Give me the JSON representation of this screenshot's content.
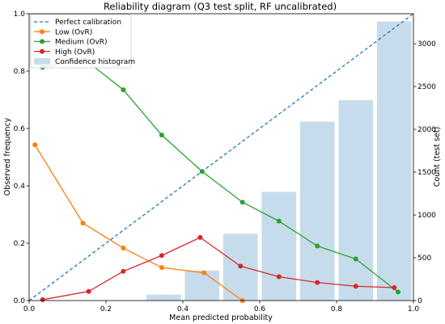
{
  "chart_data": {
    "type": "line",
    "title": "Reliability diagram (Q3 test split, RF uncalibrated)",
    "xlabel": "Mean predicted probability",
    "ylabel": "Observed frequency",
    "y2label": "Count (test set)",
    "xlim": [
      0,
      1
    ],
    "ylim": [
      0,
      1
    ],
    "y2lim": [
      0,
      3350
    ],
    "x_ticks": [
      0.0,
      0.2,
      0.4,
      0.6,
      0.8,
      1.0
    ],
    "x_tick_labels": [
      "0.0",
      "0.2",
      "0.4",
      "0.6",
      "0.8",
      "1.0"
    ],
    "y_ticks": [
      0.0,
      0.2,
      0.4,
      0.6,
      0.8,
      1.0
    ],
    "y_tick_labels": [
      "0.0",
      "0.2",
      "0.4",
      "0.6",
      "0.8",
      "1.0"
    ],
    "y2_ticks": [
      0,
      500,
      1000,
      1500,
      2000,
      2500,
      3000
    ],
    "y2_tick_labels": [
      "0",
      "500",
      "1000",
      "1500",
      "2000",
      "2500",
      "3000"
    ],
    "legend_position": "upper-left",
    "reference_line": {
      "name": "Perfect calibration",
      "color": "#1f77b4",
      "x": [
        0,
        1
      ],
      "y": [
        0,
        1
      ]
    },
    "series": [
      {
        "name": "Low (OvR)",
        "color": "#ff7f0e",
        "x": [
          0.015,
          0.14,
          0.245,
          0.345,
          0.455,
          0.555
        ],
        "y": [
          0.543,
          0.27,
          0.183,
          0.115,
          0.097,
          0.0
        ]
      },
      {
        "name": "Medium (OvR)",
        "color": "#2ca02c",
        "x": [
          0.035,
          0.145,
          0.245,
          0.345,
          0.45,
          0.555,
          0.65,
          0.75,
          0.85,
          0.96
        ],
        "y": [
          0.813,
          0.84,
          0.735,
          0.577,
          0.45,
          0.343,
          0.277,
          0.19,
          0.145,
          0.03
        ]
      },
      {
        "name": "High (OvR)",
        "color": "#d62728",
        "x": [
          0.035,
          0.155,
          0.245,
          0.345,
          0.445,
          0.55,
          0.65,
          0.75,
          0.85,
          0.95
        ],
        "y": [
          0.003,
          0.032,
          0.102,
          0.157,
          0.22,
          0.12,
          0.083,
          0.063,
          0.05,
          0.045
        ]
      }
    ],
    "histogram": {
      "name": "Confidence histogram",
      "color": "#c6dcec",
      "bins": [
        {
          "x0": 0.3,
          "x1": 0.4,
          "count": 70
        },
        {
          "x0": 0.4,
          "x1": 0.5,
          "count": 350
        },
        {
          "x0": 0.5,
          "x1": 0.6,
          "count": 780
        },
        {
          "x0": 0.6,
          "x1": 0.7,
          "count": 1270
        },
        {
          "x0": 0.7,
          "x1": 0.8,
          "count": 2090
        },
        {
          "x0": 0.8,
          "x1": 0.9,
          "count": 2340
        },
        {
          "x0": 0.9,
          "x1": 1.0,
          "count": 3260
        }
      ]
    }
  }
}
